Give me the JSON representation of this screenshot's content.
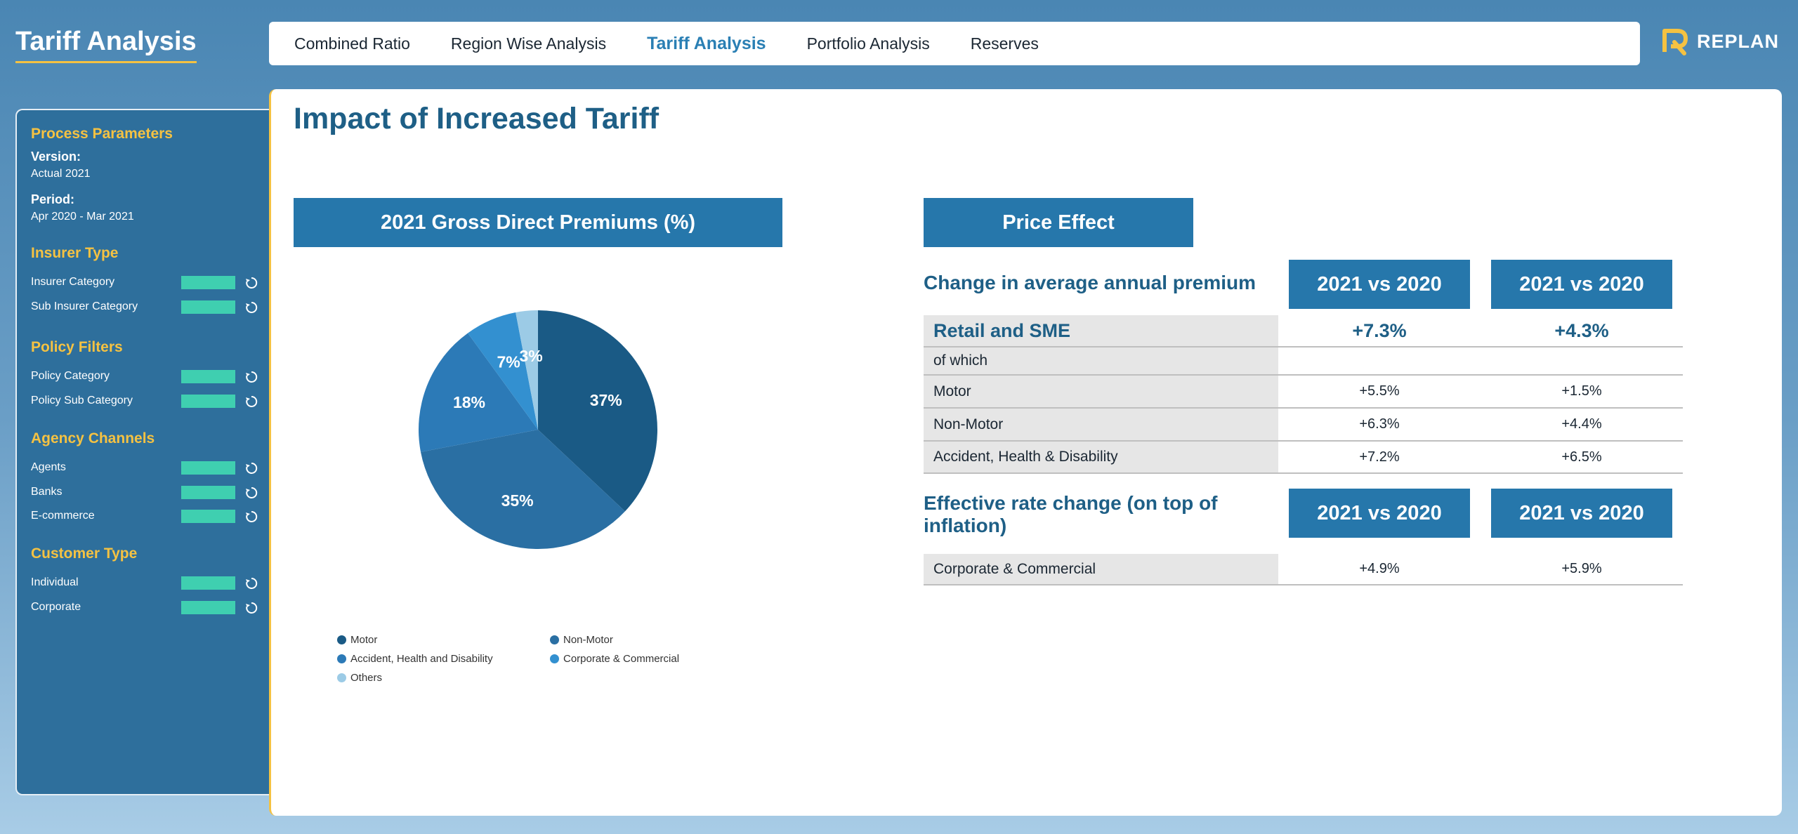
{
  "app": {
    "title": "Tariff Analysis",
    "logo_text": "REPLAN"
  },
  "nav": {
    "tabs": [
      {
        "label": "Combined Ratio"
      },
      {
        "label": "Region Wise Analysis"
      },
      {
        "label": "Tariff Analysis",
        "active": true
      },
      {
        "label": "Portfolio Analysis"
      },
      {
        "label": "Reserves"
      }
    ]
  },
  "sidebar": {
    "process_title": "Process Parameters",
    "version_label": "Version:",
    "version_value": "Actual 2021",
    "period_label": "Period:",
    "period_value": "Apr 2020 - Mar 2021",
    "insurer_title": "Insurer Type",
    "insurer": [
      "Insurer Category",
      "Sub Insurer Category"
    ],
    "policy_title": "Policy Filters",
    "policy": [
      "Policy Category",
      "Policy Sub Category"
    ],
    "agency_title": "Agency Channels",
    "agency": [
      "Agents",
      "Banks",
      "E-commerce"
    ],
    "customer_title": "Customer Type",
    "customer": [
      "Individual",
      "Corporate"
    ]
  },
  "main": {
    "title": "Impact of Increased Tariff",
    "pie_header": "2021 Gross Direct Premiums (%)",
    "price_header": "Price Effect",
    "heading1": "Change in average annual premium",
    "col_header": "2021 vs 2020",
    "rows": [
      {
        "label": "Retail and SME",
        "v1": "+7.3%",
        "v2": "+4.3%"
      },
      {
        "label": "of which",
        "v1": "",
        "v2": ""
      },
      {
        "label": "Motor",
        "v1": "+5.5%",
        "v2": "+1.5%"
      },
      {
        "label": "Non-Motor",
        "v1": "+6.3%",
        "v2": "+4.4%"
      },
      {
        "label": "Accident, Health & Disability",
        "v1": "+7.2%",
        "v2": "+6.5%"
      }
    ],
    "heading2": "Effective rate change (on top of inflation)",
    "rows2": [
      {
        "label": "Corporate & Commercial",
        "v1": "+4.9%",
        "v2": "+5.9%"
      }
    ]
  },
  "chart_data": {
    "type": "pie",
    "title": "2021 Gross Direct Premiums (%)",
    "categories": [
      "Motor",
      "Non-Motor",
      "Accident, Health and Disability",
      "Corporate & Commercial",
      "Others"
    ],
    "values": [
      37,
      35,
      18,
      7,
      3
    ],
    "labels": [
      "37%",
      "35%",
      "18%",
      "7%",
      "3%"
    ],
    "colors": [
      "#1a5a85",
      "#2a6fa3",
      "#2c7ab7",
      "#3390d0",
      "#9ccbe6"
    ],
    "legend_position": "bottom"
  }
}
